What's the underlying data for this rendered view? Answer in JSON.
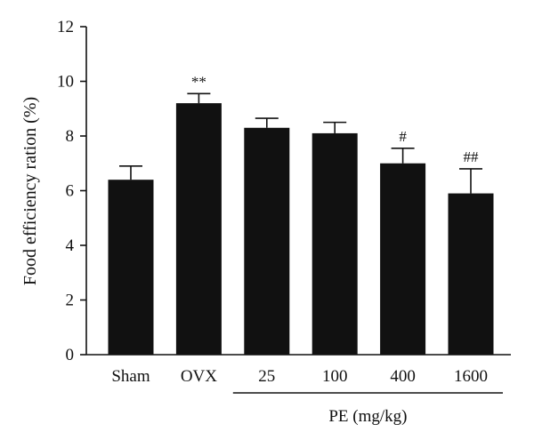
{
  "chart_data": {
    "type": "bar",
    "categories": [
      "Sham",
      "OVX",
      "25",
      "100",
      "400",
      "1600"
    ],
    "values": [
      6.4,
      9.2,
      8.3,
      8.1,
      7.0,
      5.9
    ],
    "error": [
      0.5,
      0.35,
      0.35,
      0.4,
      0.55,
      0.9
    ],
    "annotations": [
      "",
      "**",
      "",
      "",
      "#",
      "##"
    ],
    "ylabel": "Food efficiency ration (%)",
    "group_label": "PE (mg/kg)",
    "group_span": [
      "25",
      "1600"
    ],
    "ylim": [
      0,
      12
    ],
    "yticks": [
      0,
      2,
      4,
      6,
      8,
      10,
      12
    ],
    "bar_color": "#111111",
    "grid": false
  }
}
